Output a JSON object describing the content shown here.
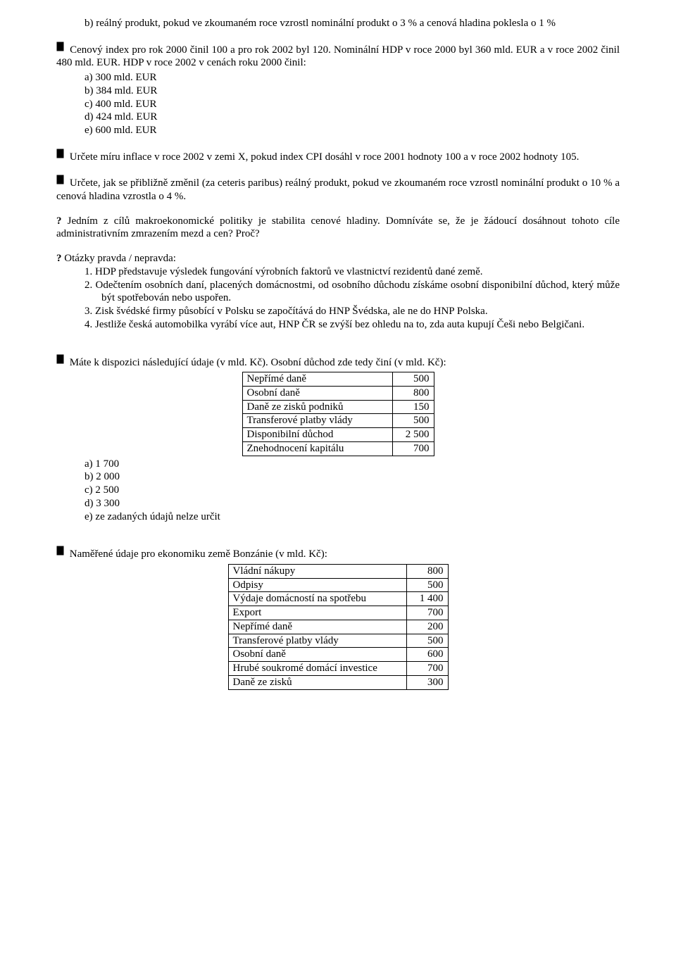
{
  "q_b": {
    "label": "b)",
    "text": "reálný produkt, pokud ve zkoumaném roce vzrostl nominální produkt o 3 % a cenová hladina poklesla o 1 %"
  },
  "block1": {
    "lead": "Cenový index pro rok 2000 činil 100 a pro rok 2002 byl 120. Nominální HDP v roce 2000 byl 360 mld. EUR a v roce 2002 činil 480 mld. EUR. HDP v roce 2002 v cenách roku 2000 činil:",
    "opts": [
      {
        "l": "a)",
        "t": "300 mld. EUR"
      },
      {
        "l": "b)",
        "t": "384 mld. EUR"
      },
      {
        "l": "c)",
        "t": "400 mld. EUR"
      },
      {
        "l": "d)",
        "t": "424 mld. EUR"
      },
      {
        "l": "e)",
        "t": "600 mld. EUR"
      }
    ]
  },
  "block2": "Určete míru inflace v roce 2002 v zemi X, pokud index CPI dosáhl v roce 2001 hodnoty 100 a v roce 2002 hodnoty 105.",
  "block3": "Určete, jak se přibližně změnil (za ceteris paribus) reálný produkt, pokud ve zkoumaném roce vzrostl nominální produkt o 10 % a cenová hladina vzrostla o 4 %.",
  "block4": "Jedním z cílů makroekonomické politiky je stabilita cenové hladiny. Domníváte se, že je žádoucí dosáhnout tohoto cíle administrativním zmrazením mezd a cen? Proč?",
  "tf": {
    "title": "Otázky pravda / nepravda:",
    "items": [
      {
        "l": "1.",
        "t": "HDP představuje výsledek fungování výrobních faktorů ve vlastnictví rezidentů dané země."
      },
      {
        "l": "2.",
        "t": "Odečtením osobních daní, placených domácnostmi, od osobního důchodu získáme osobní disponibilní důchod, který může být spotřebován nebo uspořen."
      },
      {
        "l": "3.",
        "t": "Zisk švédské firmy působící v Polsku se započítává do HNP Švédska, ale ne do HNP Polska."
      },
      {
        "l": "4.",
        "t": "Jestliže česká automobilka vyrábí více aut, HNP ČR se zvýší bez ohledu na to, zda auta kupují Češi nebo Belgičani."
      }
    ]
  },
  "block5": {
    "lead": "Máte k dispozici následující údaje (v mld. Kč). Osobní důchod zde tedy činí (v mld. Kč):",
    "table": [
      {
        "label": "Nepřímé daně",
        "val": "500"
      },
      {
        "label": "Osobní daně",
        "val": "800"
      },
      {
        "label": "Daně ze zisků podniků",
        "val": "150"
      },
      {
        "label": "Transferové platby vlády",
        "val": "500"
      },
      {
        "label": "Disponibilní důchod",
        "val": "2 500"
      },
      {
        "label": "Znehodnocení kapitálu",
        "val": "700"
      }
    ],
    "opts": [
      {
        "l": "a)",
        "t": "1 700"
      },
      {
        "l": "b)",
        "t": "2 000"
      },
      {
        "l": "c)",
        "t": "2 500"
      },
      {
        "l": "d)",
        "t": "3 300"
      },
      {
        "l": "e)",
        "t": "ze zadaných údajů nelze určit"
      }
    ]
  },
  "block6": {
    "lead": "Naměřené údaje pro ekonomiku země Bonzánie (v mld. Kč):",
    "table": [
      {
        "label": "Vládní nákupy",
        "val": "800"
      },
      {
        "label": "Odpisy",
        "val": "500"
      },
      {
        "label": "Výdaje domácností na spotřebu",
        "val": "1 400"
      },
      {
        "label": "Export",
        "val": "700"
      },
      {
        "label": "Nepřímé daně",
        "val": "200"
      },
      {
        "label": "Transferové platby vlády",
        "val": "500"
      },
      {
        "label": "Osobní daně",
        "val": "600"
      },
      {
        "label": "Hrubé soukromé domácí investice",
        "val": "700"
      },
      {
        "label": "Daně ze zisků",
        "val": "300"
      }
    ]
  },
  "style": {
    "table1_label_width": 200,
    "table2_label_width": 240
  }
}
